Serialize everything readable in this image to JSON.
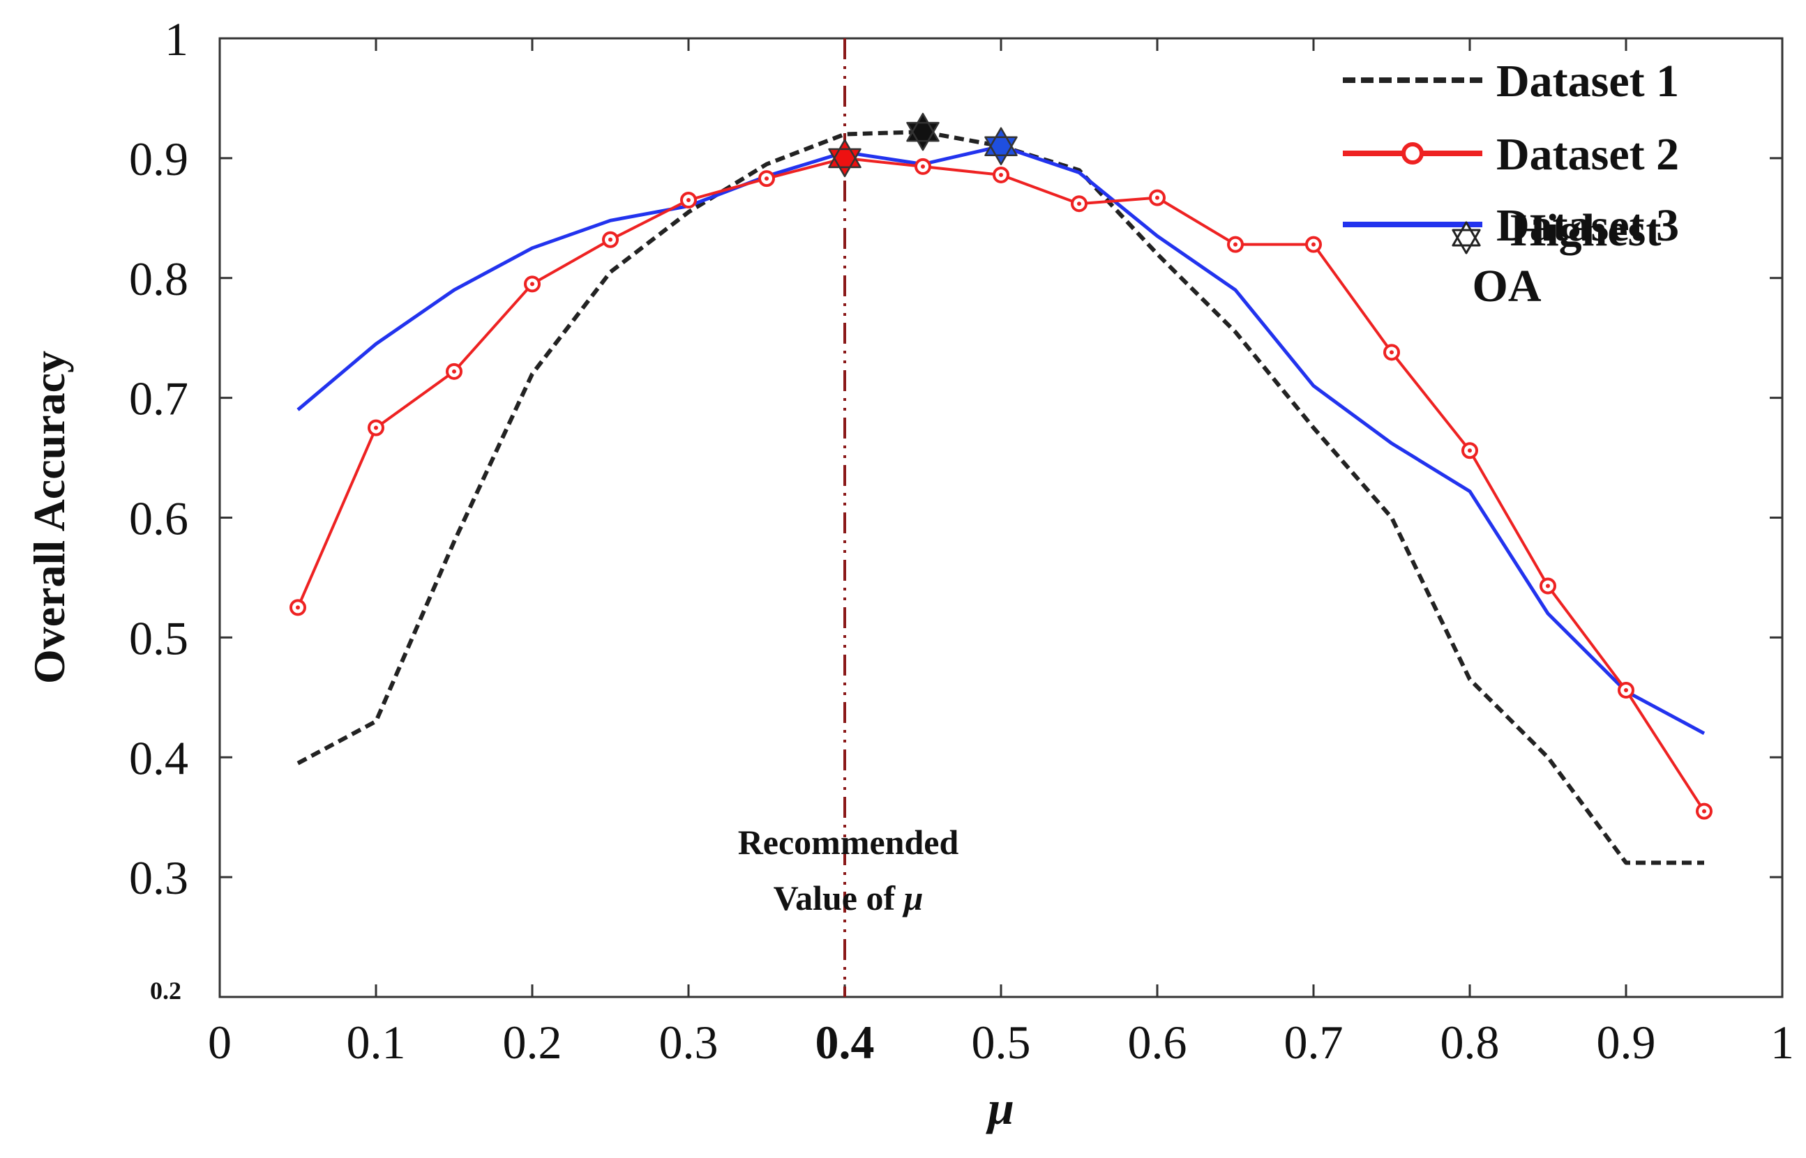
{
  "chart_data": {
    "type": "line",
    "title": "",
    "xlabel": "μ",
    "ylabel": "Overall Accuracy",
    "xlim": [
      0,
      1
    ],
    "ylim": [
      0.2,
      1
    ],
    "x_ticks": [
      "0",
      "0.1",
      "0.2",
      "0.3",
      "0.4",
      "0.5",
      "0.6",
      "0.7",
      "0.8",
      "0.9",
      "1"
    ],
    "y_ticks": [
      "0.3",
      "0.4",
      "0.5",
      "0.6",
      "0.7",
      "0.8",
      "0.9",
      "1"
    ],
    "y_min_label": "0.2",
    "grid": false,
    "legend_position": "top-right",
    "x": [
      0.05,
      0.1,
      0.15,
      0.2,
      0.25,
      0.3,
      0.35,
      0.4,
      0.45,
      0.5,
      0.55,
      0.6,
      0.65,
      0.7,
      0.75,
      0.8,
      0.85,
      0.9,
      0.95
    ],
    "series": [
      {
        "name": "Dataset 1",
        "color": "#222222",
        "style": "dashed",
        "marker": "none",
        "values": [
          0.395,
          0.43,
          0.58,
          0.72,
          0.805,
          0.855,
          0.895,
          0.92,
          0.922,
          0.91,
          0.89,
          0.82,
          0.755,
          0.675,
          0.6,
          0.465,
          0.4,
          0.312,
          0.312
        ]
      },
      {
        "name": "Dataset 2",
        "color": "#ee2222",
        "style": "solid",
        "marker": "circle",
        "values": [
          0.525,
          0.675,
          0.722,
          0.795,
          0.832,
          0.865,
          0.883,
          0.9,
          0.893,
          0.886,
          0.862,
          0.867,
          0.828,
          0.828,
          0.738,
          0.656,
          0.543,
          0.456,
          0.355
        ]
      },
      {
        "name": "Dataset 3",
        "color": "#2233ee",
        "style": "solid",
        "marker": "none",
        "values": [
          0.69,
          0.745,
          0.79,
          0.825,
          0.848,
          0.86,
          0.885,
          0.905,
          0.895,
          0.91,
          0.888,
          0.835,
          0.79,
          0.71,
          0.662,
          0.622,
          0.52,
          0.455,
          0.42
        ]
      }
    ],
    "highest_points": [
      {
        "series": "Dataset 1",
        "x": 0.45,
        "y": 0.922,
        "color": "#111111"
      },
      {
        "series": "Dataset 2",
        "x": 0.4,
        "y": 0.9,
        "color": "#ee1111"
      },
      {
        "series": "Dataset 3",
        "x": 0.5,
        "y": 0.91,
        "color": "#1f4fe0"
      }
    ],
    "highest_legend": {
      "line1": "Highest",
      "line2": "OA"
    },
    "recommended": {
      "x": 0.4,
      "line1": "Recommended",
      "line2_prefix": "Value of ",
      "line2_symbol": "μ",
      "color": "#8b1a1a"
    }
  }
}
